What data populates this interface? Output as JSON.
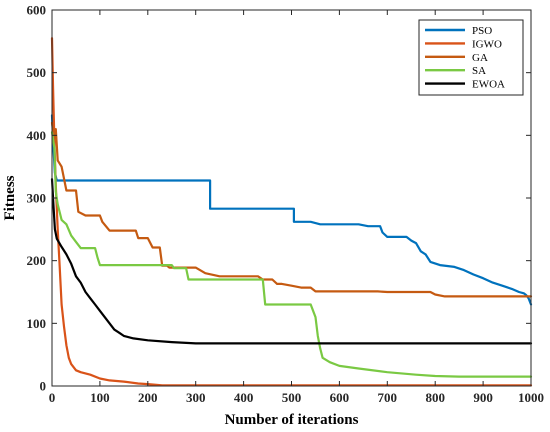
{
  "chart_data": {
    "type": "line",
    "title": "",
    "xlabel": "Number of iterations",
    "ylabel": "Fitness",
    "xlim": [
      0,
      1000
    ],
    "ylim": [
      0,
      600
    ],
    "xticks": [
      0,
      100,
      200,
      300,
      400,
      500,
      600,
      700,
      800,
      900,
      1000
    ],
    "yticks": [
      0,
      100,
      200,
      300,
      400,
      500,
      600
    ],
    "grid": false,
    "legend_position": "top-right",
    "series": [
      {
        "name": "PSO",
        "color": "#0072BD",
        "points": [
          [
            0,
            432
          ],
          [
            3,
            380
          ],
          [
            6,
            340
          ],
          [
            10,
            328
          ],
          [
            330,
            328
          ],
          [
            330,
            283
          ],
          [
            505,
            283
          ],
          [
            505,
            262
          ],
          [
            540,
            262
          ],
          [
            560,
            258
          ],
          [
            640,
            258
          ],
          [
            660,
            255
          ],
          [
            685,
            255
          ],
          [
            690,
            245
          ],
          [
            700,
            238
          ],
          [
            740,
            238
          ],
          [
            750,
            232
          ],
          [
            760,
            228
          ],
          [
            770,
            215
          ],
          [
            780,
            210
          ],
          [
            790,
            198
          ],
          [
            810,
            193
          ],
          [
            840,
            190
          ],
          [
            860,
            185
          ],
          [
            880,
            178
          ],
          [
            900,
            172
          ],
          [
            920,
            165
          ],
          [
            940,
            160
          ],
          [
            960,
            155
          ],
          [
            975,
            150
          ],
          [
            985,
            148
          ],
          [
            990,
            145
          ],
          [
            995,
            140
          ],
          [
            1000,
            130
          ]
        ]
      },
      {
        "name": "IGWO",
        "color": "#D95319",
        "points": [
          [
            0,
            555
          ],
          [
            2,
            480
          ],
          [
            5,
            390
          ],
          [
            8,
            320
          ],
          [
            12,
            250
          ],
          [
            16,
            190
          ],
          [
            20,
            130
          ],
          [
            25,
            95
          ],
          [
            30,
            65
          ],
          [
            35,
            45
          ],
          [
            40,
            35
          ],
          [
            50,
            25
          ],
          [
            60,
            22
          ],
          [
            80,
            18
          ],
          [
            100,
            12
          ],
          [
            120,
            9
          ],
          [
            150,
            7
          ],
          [
            180,
            4
          ],
          [
            200,
            3
          ],
          [
            230,
            1
          ],
          [
            260,
            1
          ],
          [
            1000,
            1
          ]
        ]
      },
      {
        "name": "GA",
        "color": "#C55A11",
        "points": [
          [
            0,
            420
          ],
          [
            5,
            395
          ],
          [
            8,
            410
          ],
          [
            12,
            360
          ],
          [
            20,
            350
          ],
          [
            30,
            312
          ],
          [
            50,
            312
          ],
          [
            55,
            278
          ],
          [
            70,
            272
          ],
          [
            100,
            272
          ],
          [
            105,
            262
          ],
          [
            120,
            248
          ],
          [
            145,
            248
          ],
          [
            175,
            248
          ],
          [
            180,
            236
          ],
          [
            200,
            236
          ],
          [
            210,
            221
          ],
          [
            225,
            221
          ],
          [
            230,
            192
          ],
          [
            240,
            192
          ],
          [
            245,
            189
          ],
          [
            300,
            189
          ],
          [
            320,
            180
          ],
          [
            350,
            175
          ],
          [
            430,
            175
          ],
          [
            440,
            170
          ],
          [
            460,
            170
          ],
          [
            470,
            163
          ],
          [
            480,
            163
          ],
          [
            500,
            160
          ],
          [
            520,
            157
          ],
          [
            540,
            157
          ],
          [
            550,
            151
          ],
          [
            680,
            151
          ],
          [
            700,
            150
          ],
          [
            790,
            150
          ],
          [
            800,
            146
          ],
          [
            820,
            143
          ],
          [
            1000,
            143
          ]
        ]
      },
      {
        "name": "SA",
        "color": "#7AC943",
        "points": [
          [
            0,
            405
          ],
          [
            5,
            380
          ],
          [
            8,
            310
          ],
          [
            12,
            290
          ],
          [
            20,
            265
          ],
          [
            30,
            258
          ],
          [
            40,
            240
          ],
          [
            50,
            230
          ],
          [
            60,
            220
          ],
          [
            90,
            220
          ],
          [
            95,
            205
          ],
          [
            100,
            193
          ],
          [
            250,
            193
          ],
          [
            255,
            188
          ],
          [
            280,
            188
          ],
          [
            285,
            170
          ],
          [
            440,
            170
          ],
          [
            445,
            130
          ],
          [
            540,
            130
          ],
          [
            545,
            120
          ],
          [
            550,
            110
          ],
          [
            555,
            80
          ],
          [
            560,
            60
          ],
          [
            565,
            45
          ],
          [
            580,
            38
          ],
          [
            600,
            32
          ],
          [
            640,
            28
          ],
          [
            700,
            22
          ],
          [
            760,
            18
          ],
          [
            800,
            16
          ],
          [
            850,
            15
          ],
          [
            1000,
            15
          ]
        ]
      },
      {
        "name": "EWOA",
        "color": "#000000",
        "points": [
          [
            0,
            330
          ],
          [
            3,
            290
          ],
          [
            6,
            250
          ],
          [
            10,
            235
          ],
          [
            20,
            222
          ],
          [
            30,
            210
          ],
          [
            40,
            195
          ],
          [
            50,
            175
          ],
          [
            60,
            165
          ],
          [
            70,
            150
          ],
          [
            80,
            140
          ],
          [
            90,
            130
          ],
          [
            100,
            120
          ],
          [
            110,
            110
          ],
          [
            120,
            100
          ],
          [
            130,
            90
          ],
          [
            140,
            85
          ],
          [
            150,
            80
          ],
          [
            170,
            76
          ],
          [
            200,
            73
          ],
          [
            250,
            70
          ],
          [
            300,
            68
          ],
          [
            400,
            68
          ],
          [
            1000,
            68
          ]
        ]
      }
    ]
  }
}
